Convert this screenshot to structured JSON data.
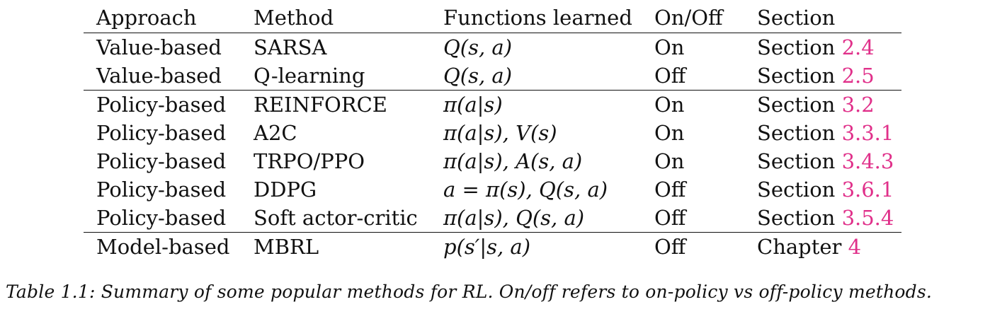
{
  "table": {
    "headers": [
      "Approach",
      "Method",
      "Functions learned",
      "On/Off",
      "Section"
    ],
    "rows": [
      {
        "approach": "Value-based",
        "method": "SARSA",
        "functions": "Q(s, a)",
        "onoff": "On",
        "section_prefix": "Section",
        "section_ref": "2.4"
      },
      {
        "approach": "Value-based",
        "method": "Q-learning",
        "functions": "Q(s, a)",
        "onoff": "Off",
        "section_prefix": "Section",
        "section_ref": "2.5"
      },
      {
        "approach": "Policy-based",
        "method": "REINFORCE",
        "functions": "π(a|s)",
        "onoff": "On",
        "section_prefix": "Section",
        "section_ref": "3.2"
      },
      {
        "approach": "Policy-based",
        "method": "A2C",
        "functions": "π(a|s), V(s)",
        "onoff": "On",
        "section_prefix": "Section",
        "section_ref": "3.3.1"
      },
      {
        "approach": "Policy-based",
        "method": "TRPO/PPO",
        "functions": "π(a|s), A(s, a)",
        "onoff": "On",
        "section_prefix": "Section",
        "section_ref": "3.4.3"
      },
      {
        "approach": "Policy-based",
        "method": "DDPG",
        "functions": "a = π(s), Q(s, a)",
        "onoff": "Off",
        "section_prefix": "Section",
        "section_ref": "3.6.1"
      },
      {
        "approach": "Policy-based",
        "method": "Soft actor-critic",
        "functions": "π(a|s), Q(s, a)",
        "onoff": "Off",
        "section_prefix": "Section",
        "section_ref": "3.5.4"
      },
      {
        "approach": "Model-based",
        "method": "MBRL",
        "functions": "p(s′|s, a)",
        "onoff": "Off",
        "section_prefix": "Chapter",
        "section_ref": "4"
      }
    ]
  },
  "caption": "Table 1.1: Summary of some popular methods for RL. On/off refers to on-policy vs off-policy methods.",
  "colors": {
    "link": "#e0308a",
    "text": "#111111"
  }
}
